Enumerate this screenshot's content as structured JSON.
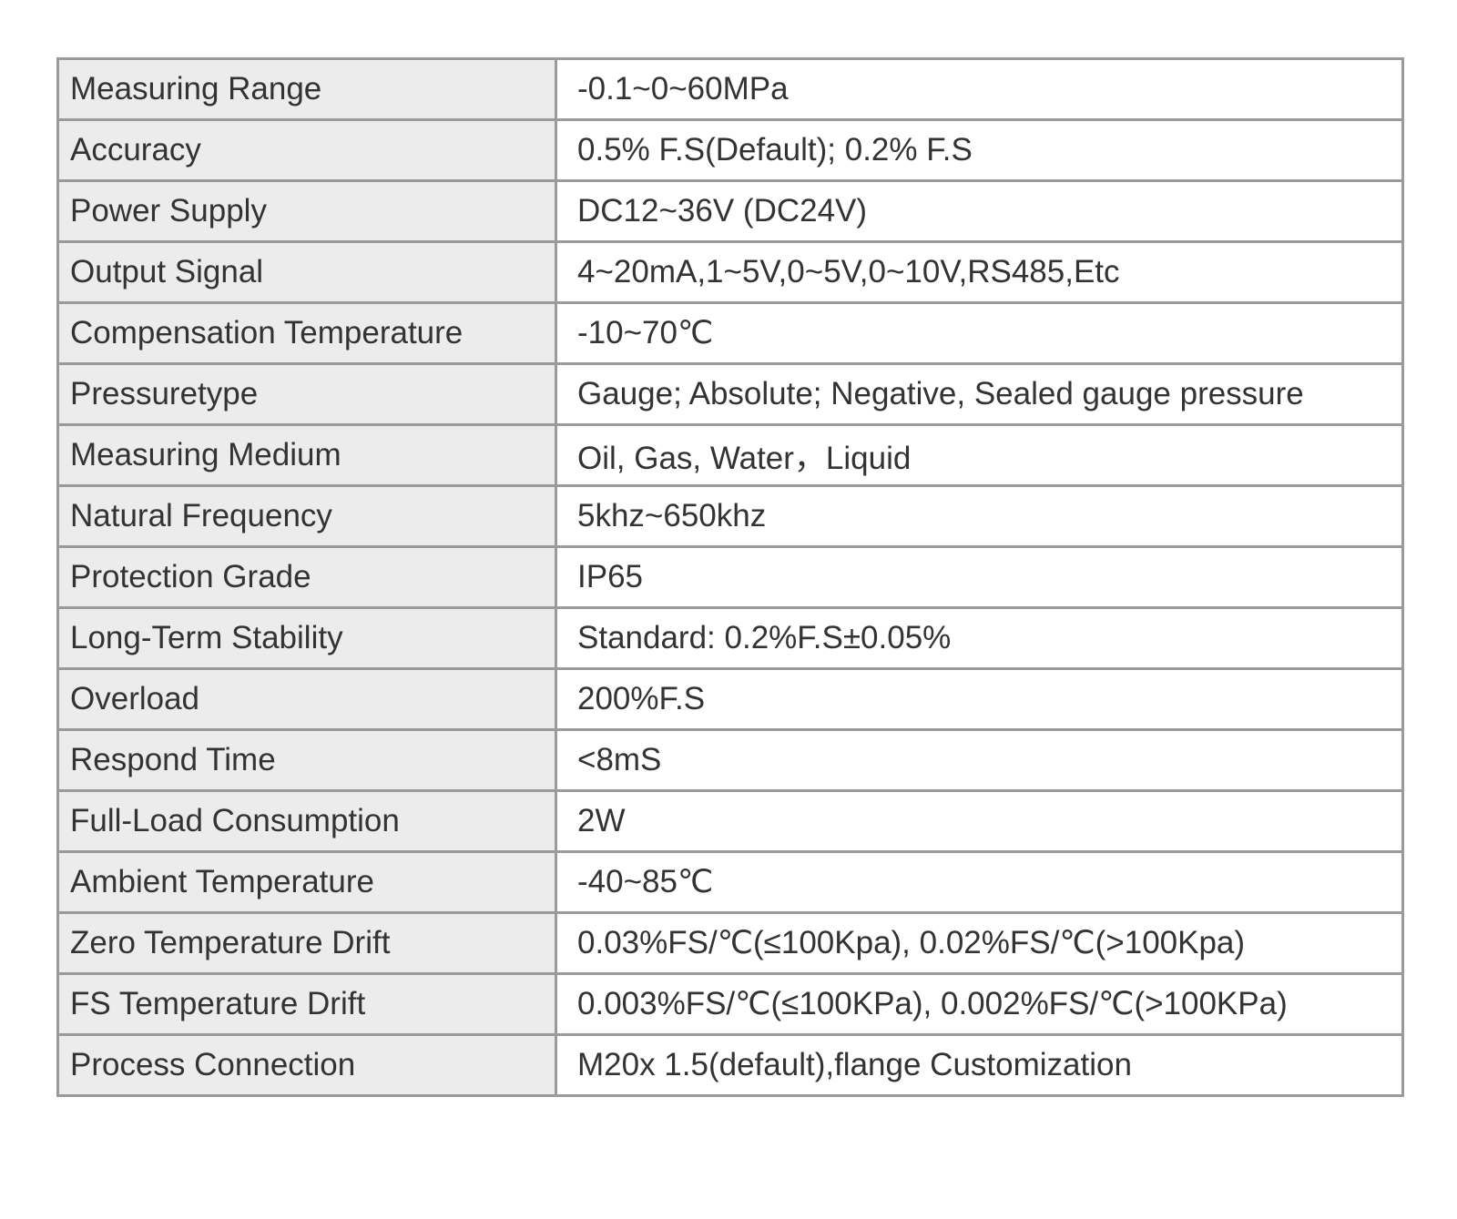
{
  "table": {
    "rows": [
      [
        "Measuring Range",
        "-0.1~0~60MPa"
      ],
      [
        "Accuracy",
        "0.5% F.S(Default); 0.2% F.S"
      ],
      [
        "Power Supply",
        "DC12~36V (DC24V)"
      ],
      [
        "Output Signal",
        "4~20mA,1~5V,0~5V,0~10V,RS485,Etc"
      ],
      [
        "Compensation Temperature",
        "-10~70℃"
      ],
      [
        "Pressuretype",
        "Gauge; Absolute; Negative, Sealed gauge pressure"
      ],
      [
        "Measuring Medium",
        "Oil, Gas, Water，Liquid"
      ],
      [
        "Natural Frequency",
        "5khz~650khz"
      ],
      [
        "Protection Grade",
        "IP65"
      ],
      [
        "Long-Term Stability",
        "Standard: 0.2%F.S±0.05%"
      ],
      [
        "Overload",
        "200%F.S"
      ],
      [
        "Respond Time",
        "<8mS"
      ],
      [
        "Full-Load Consumption",
        "2W"
      ],
      [
        "Ambient Temperature",
        "-40~85℃"
      ],
      [
        "Zero Temperature Drift",
        "0.03%FS/℃(≤100Kpa), 0.02%FS/℃(>100Kpa)"
      ],
      [
        "FS Temperature Drift",
        "0.003%FS/℃(≤100KPa), 0.002%FS/℃(>100KPa)"
      ],
      [
        "Process Connection",
        "M20x 1.5(default),flange Customization"
      ]
    ]
  }
}
